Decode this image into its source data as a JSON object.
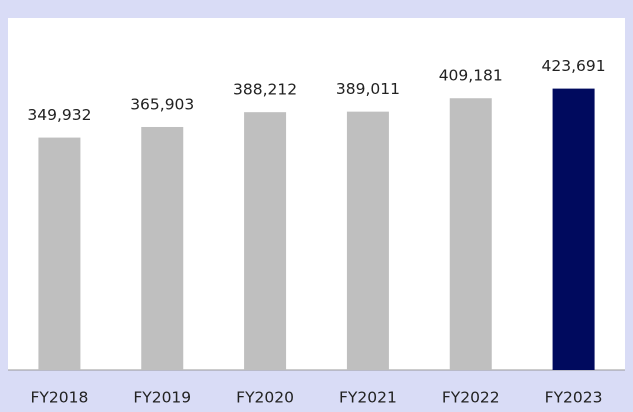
{
  "chart_data": {
    "type": "bar",
    "categories": [
      "FY2018",
      "FY2019",
      "FY2020",
      "FY2021",
      "FY2022",
      "FY2023"
    ],
    "values": [
      349932,
      365903,
      388212,
      389011,
      409181,
      423691
    ],
    "value_labels": [
      "349,932",
      "365,903",
      "388,212",
      "389,011",
      "409,181",
      "423,691"
    ],
    "colors": [
      "#bfbfbf",
      "#bfbfbf",
      "#bfbfbf",
      "#bfbfbf",
      "#bfbfbf",
      "#000a5e"
    ],
    "ylim": [
      0,
      530000
    ]
  }
}
